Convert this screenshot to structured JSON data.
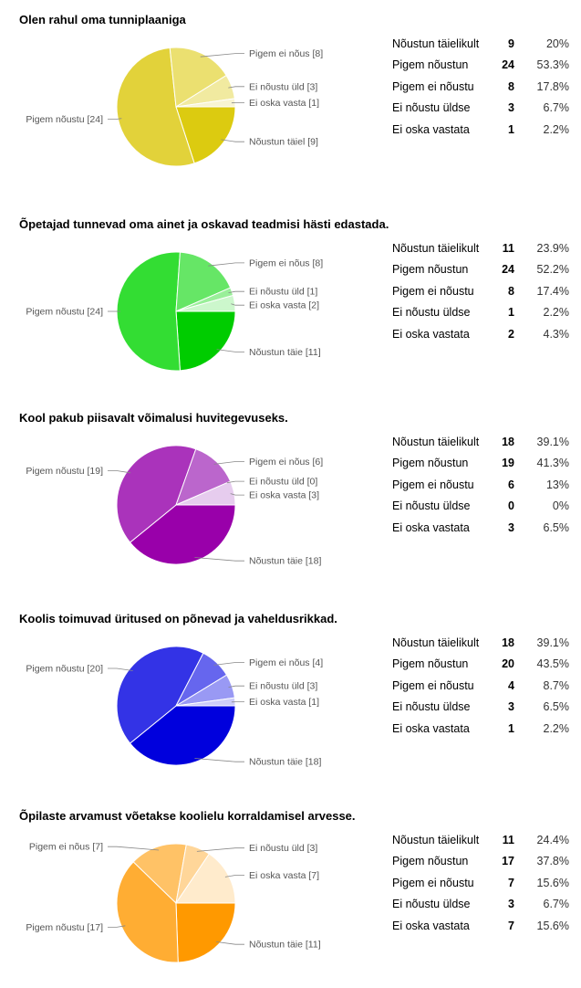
{
  "chart_data": [
    {
      "type": "pie",
      "title": "Olen rahul oma tunniplaaniga",
      "slice_labels": [
        "Nõustun täiel [9]",
        "Pigem nõustu [24]",
        "Pigem ei nõus [8]",
        "Ei nõustu üld [3]",
        "Ei oska vasta [1]"
      ],
      "table_labels": [
        "Nõustun täielikult",
        "Pigem nõustun",
        "Pigem ei nõustu",
        "Ei nõustu üldse",
        "Ei oska vastata"
      ],
      "values": [
        9,
        24,
        8,
        3,
        1
      ],
      "percents": [
        "20%",
        "53.3%",
        "17.8%",
        "6.7%",
        "2.2%"
      ],
      "colors": [
        "#dccb10",
        "#e2d23a",
        "#ebe070",
        "#f1eaa0",
        "#f8f4d2"
      ],
      "legend": "labels around pie, table on right"
    },
    {
      "type": "pie",
      "title": "Õpetajad tunnevad oma ainet ja oskavad teadmisi hästi edastada.",
      "slice_labels": [
        "Nõustun täie [11]",
        "Pigem nõustu [24]",
        "Pigem ei nõus [8]",
        "Ei nõustu üld [1]",
        "Ei oska vasta [2]"
      ],
      "table_labels": [
        "Nõustun täielikult",
        "Pigem nõustun",
        "Pigem ei nõustu",
        "Ei nõustu üldse",
        "Ei oska vastata"
      ],
      "values": [
        11,
        24,
        8,
        1,
        2
      ],
      "percents": [
        "23.9%",
        "52.2%",
        "17.4%",
        "2.2%",
        "4.3%"
      ],
      "colors": [
        "#00cc00",
        "#33dd33",
        "#66e666",
        "#99ef99",
        "#ccf7cc"
      ],
      "legend": "labels around pie, table on right"
    },
    {
      "type": "pie",
      "title": "Kool pakub piisavalt võimalusi huvitegevuseks.",
      "slice_labels": [
        "Nõustun täie [18]",
        "Pigem nõustu [19]",
        "Pigem ei nõus [6]",
        "Ei nõustu üld [0]",
        "Ei oska vasta [3]"
      ],
      "table_labels": [
        "Nõustun täielikult",
        "Pigem nõustun",
        "Pigem ei nõustu",
        "Ei nõustu üldse",
        "Ei oska vastata"
      ],
      "values": [
        18,
        19,
        6,
        0,
        3
      ],
      "percents": [
        "39.1%",
        "41.3%",
        "13%",
        "0%",
        "6.5%"
      ],
      "colors": [
        "#9900aa",
        "#aa33bb",
        "#bb66cc",
        "#cc99dd",
        "#e6ccee"
      ],
      "legend": "labels around pie, table on right"
    },
    {
      "type": "pie",
      "title": "Koolis toimuvad üritused on põnevad ja vaheldusrikkad.",
      "slice_labels": [
        "Nõustun täie [18]",
        "Pigem nõustu [20]",
        "Pigem ei nõus [4]",
        "Ei nõustu üld [3]",
        "Ei oska vasta [1]"
      ],
      "table_labels": [
        "Nõustun täielikult",
        "Pigem nõustun",
        "Pigem ei nõustu",
        "Ei nõustu üldse",
        "Ei oska vastata"
      ],
      "values": [
        18,
        20,
        4,
        3,
        1
      ],
      "percents": [
        "39.1%",
        "43.5%",
        "8.7%",
        "6.5%",
        "2.2%"
      ],
      "colors": [
        "#0000dd",
        "#3333e6",
        "#6666ee",
        "#9999f4",
        "#ccccf9"
      ],
      "legend": "labels around pie, table on right"
    },
    {
      "type": "pie",
      "title": "Õpilaste arvamust võetakse koolielu korraldamisel arvesse.",
      "slice_labels": [
        "Nõustun täie [11]",
        "Pigem nõustu [17]",
        "Pigem ei nõus [7]",
        "Ei nõustu üld [3]",
        "Ei oska vasta [7]"
      ],
      "table_labels": [
        "Nõustun täielikult",
        "Pigem nõustun",
        "Pigem ei nõustu",
        "Ei nõustu üldse",
        "Ei oska vastata"
      ],
      "values": [
        11,
        17,
        7,
        3,
        7
      ],
      "percents": [
        "24.4%",
        "37.8%",
        "15.6%",
        "6.7%",
        "15.6%"
      ],
      "colors": [
        "#ff9900",
        "#ffad33",
        "#ffc266",
        "#ffd699",
        "#ffebcc"
      ],
      "legend": "labels around pie, table on right"
    }
  ]
}
